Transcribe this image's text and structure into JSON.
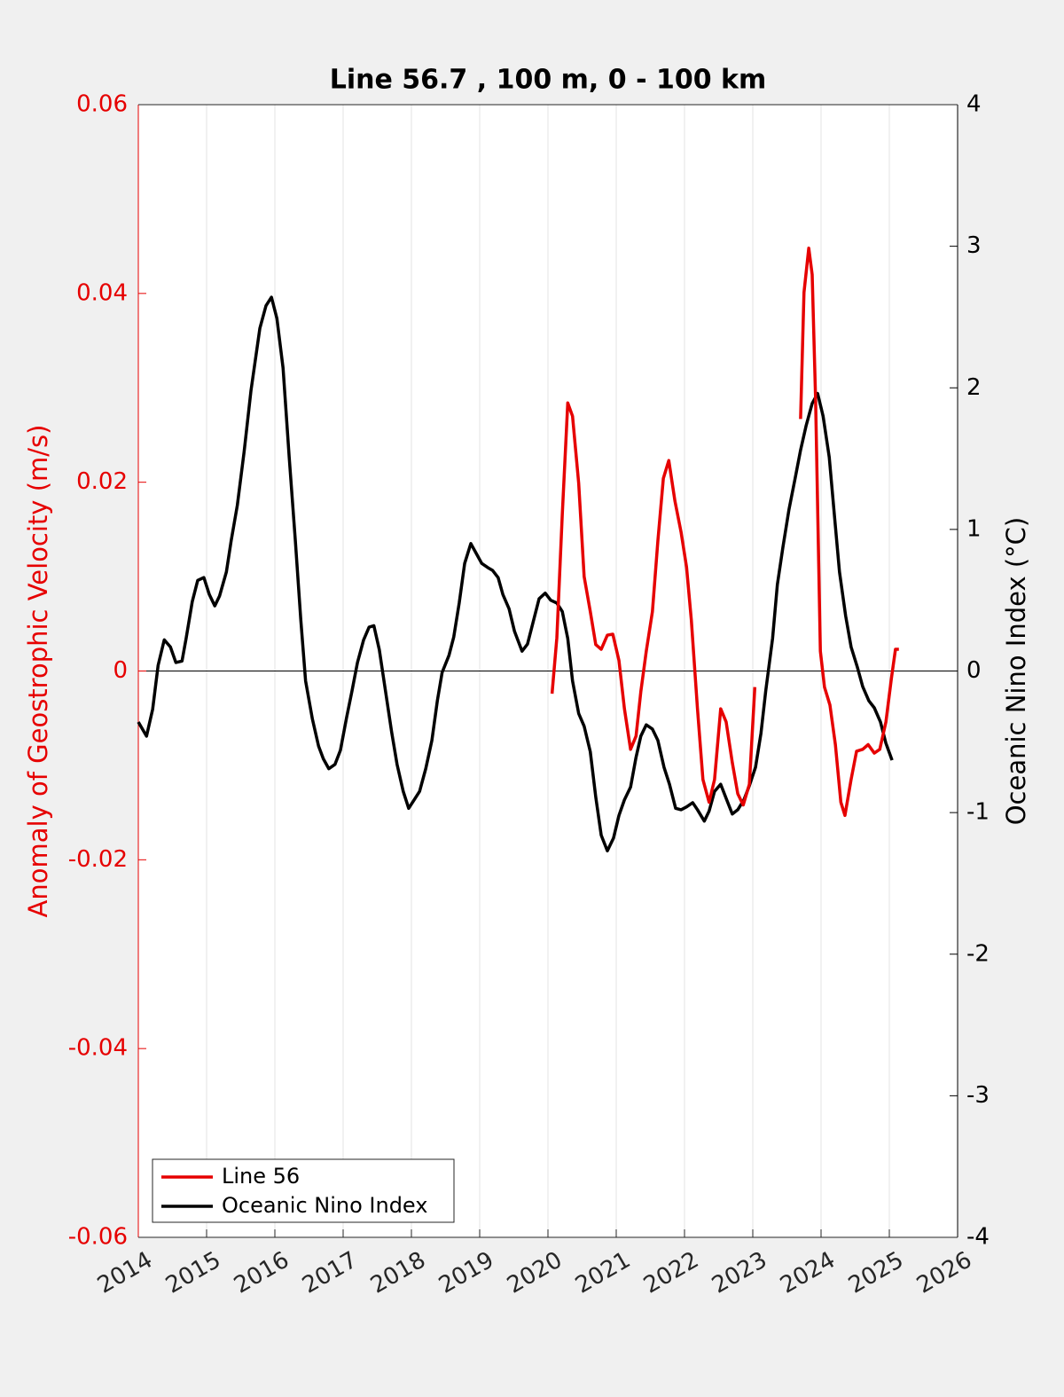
{
  "chart_data": {
    "type": "line",
    "title": "Line 56.7 , 100 m, 0 - 100 km",
    "ylabel": "Anomaly of Geostrophic Velocity (m/s)",
    "y2label": "Oceanic Nino Index (°C)",
    "ycolor": "#e60000",
    "y2color": "#000000",
    "xlim": [
      2014,
      2026
    ],
    "xticks": [
      2014,
      2015,
      2016,
      2017,
      2018,
      2019,
      2020,
      2021,
      2022,
      2023,
      2024,
      2025,
      2026
    ],
    "ylim": [
      -0.06,
      0.06
    ],
    "yticks": [
      -0.06,
      -0.04,
      -0.02,
      0,
      0.02,
      0.04,
      0.06
    ],
    "y2lim": [
      -4,
      4
    ],
    "y2ticks": [
      -4,
      -3,
      -2,
      -1,
      0,
      1,
      2,
      3,
      4
    ],
    "xgrid": true,
    "reference_line": 0,
    "legend": "lower left",
    "series": [
      {
        "name": "Line 56",
        "color": "#e60000",
        "axis": "y",
        "x": [
          2020.06,
          2020.13,
          2020.21,
          2020.29,
          2020.36,
          2020.45,
          2020.53,
          2020.62,
          2020.7,
          2020.78,
          2020.87,
          2020.95,
          2021.04,
          2021.12,
          2021.21,
          2021.29,
          2021.36,
          2021.44,
          2021.53,
          2021.61,
          2021.69,
          2021.77,
          2021.86,
          2021.95,
          2022.03,
          2022.1,
          2022.19,
          2022.27,
          2022.36,
          2022.44,
          2022.53,
          2022.61,
          2022.7,
          2022.78,
          2022.86,
          2022.95,
          2023.03,
          2023.4,
          2023.7,
          2023.75,
          2023.82,
          2023.87,
          2023.92,
          2023.99,
          2024.05,
          2024.13,
          2024.21,
          2024.29,
          2024.35,
          2024.44,
          2024.52,
          2024.61,
          2024.69,
          2024.78,
          2024.86,
          2024.95,
          2025.03,
          2025.09,
          2025.14
        ],
        "values": [
          -0.0024,
          0.0035,
          0.0166,
          0.0284,
          0.027,
          0.0199,
          0.01,
          0.0063,
          0.0028,
          0.0023,
          0.0038,
          0.0039,
          0.0011,
          -0.004,
          -0.0083,
          -0.0069,
          -0.0022,
          0.0021,
          0.0063,
          0.0138,
          0.0204,
          0.0223,
          0.018,
          0.0147,
          0.011,
          0.0054,
          -0.004,
          -0.0115,
          -0.0139,
          -0.0115,
          -0.004,
          -0.0054,
          -0.0097,
          -0.013,
          -0.0142,
          -0.012,
          -0.0017,
          null,
          0.0267,
          0.0401,
          0.0448,
          0.042,
          0.0288,
          0.0021,
          -0.0017,
          -0.0036,
          -0.0078,
          -0.0139,
          -0.0153,
          -0.0115,
          -0.0085,
          -0.0083,
          -0.0078,
          -0.0087,
          -0.0083,
          -0.0054,
          -0.0008,
          0.0023,
          0.0023
        ]
      },
      {
        "name": "Oceanic Nino Index",
        "color": "#000000",
        "axis": "y2",
        "x": [
          2014.0,
          2014.12,
          2014.21,
          2014.29,
          2014.38,
          2014.47,
          2014.55,
          2014.64,
          2014.7,
          2014.79,
          2014.87,
          2014.96,
          2015.04,
          2015.12,
          2015.19,
          2015.29,
          2015.36,
          2015.45,
          2015.55,
          2015.65,
          2015.78,
          2015.87,
          2015.95,
          2016.03,
          2016.12,
          2016.21,
          2016.3,
          2016.38,
          2016.45,
          2016.55,
          2016.64,
          2016.71,
          2016.79,
          2016.88,
          2016.96,
          2017.05,
          2017.13,
          2017.21,
          2017.3,
          2017.38,
          2017.45,
          2017.53,
          2017.62,
          2017.71,
          2017.79,
          2017.88,
          2017.96,
          2018.04,
          2018.12,
          2018.21,
          2018.3,
          2018.38,
          2018.45,
          2018.55,
          2018.62,
          2018.7,
          2018.78,
          2018.87,
          2018.95,
          2019.03,
          2019.12,
          2019.19,
          2019.27,
          2019.34,
          2019.43,
          2019.51,
          2019.62,
          2019.7,
          2019.78,
          2019.87,
          2019.96,
          2020.04,
          2020.13,
          2020.21,
          2020.29,
          2020.36,
          2020.45,
          2020.53,
          2020.62,
          2020.7,
          2020.78,
          2020.87,
          2020.96,
          2021.04,
          2021.12,
          2021.21,
          2021.29,
          2021.36,
          2021.44,
          2021.53,
          2021.61,
          2021.7,
          2021.78,
          2021.87,
          2021.95,
          2022.03,
          2022.12,
          2022.19,
          2022.29,
          2022.36,
          2022.44,
          2022.53,
          2022.61,
          2022.7,
          2022.78,
          2022.87,
          2022.95,
          2023.04,
          2023.12,
          2023.19,
          2023.29,
          2023.36,
          2023.44,
          2023.53,
          2023.62,
          2023.7,
          2023.78,
          2023.87,
          2023.95,
          2024.03,
          2024.12,
          2024.19,
          2024.27,
          2024.36,
          2024.44,
          2024.53,
          2024.61,
          2024.7,
          2024.78,
          2024.87,
          2024.95,
          2025.04
        ],
        "values": [
          -0.36,
          -0.46,
          -0.27,
          0.04,
          0.22,
          0.17,
          0.06,
          0.07,
          0.23,
          0.49,
          0.64,
          0.66,
          0.54,
          0.46,
          0.53,
          0.7,
          0.92,
          1.17,
          1.55,
          1.98,
          2.42,
          2.58,
          2.64,
          2.49,
          2.14,
          1.51,
          0.92,
          0.36,
          -0.07,
          -0.34,
          -0.53,
          -0.62,
          -0.69,
          -0.66,
          -0.56,
          -0.33,
          -0.14,
          0.06,
          0.22,
          0.31,
          0.32,
          0.15,
          -0.14,
          -0.43,
          -0.66,
          -0.85,
          -0.97,
          -0.91,
          -0.85,
          -0.69,
          -0.49,
          -0.21,
          -0.01,
          0.11,
          0.24,
          0.48,
          0.76,
          0.9,
          0.83,
          0.76,
          0.73,
          0.71,
          0.66,
          0.54,
          0.44,
          0.28,
          0.14,
          0.19,
          0.34,
          0.51,
          0.55,
          0.5,
          0.48,
          0.42,
          0.23,
          -0.07,
          -0.3,
          -0.39,
          -0.57,
          -0.89,
          -1.16,
          -1.27,
          -1.18,
          -1.02,
          -0.91,
          -0.82,
          -0.61,
          -0.46,
          -0.38,
          -0.41,
          -0.49,
          -0.68,
          -0.8,
          -0.97,
          -0.98,
          -0.96,
          -0.93,
          -0.98,
          -1.06,
          -0.99,
          -0.85,
          -0.8,
          -0.9,
          -1.01,
          -0.98,
          -0.91,
          -0.81,
          -0.68,
          -0.44,
          -0.14,
          0.23,
          0.61,
          0.87,
          1.14,
          1.36,
          1.56,
          1.73,
          1.89,
          1.96,
          1.8,
          1.51,
          1.13,
          0.7,
          0.39,
          0.17,
          0.03,
          -0.11,
          -0.21,
          -0.26,
          -0.36,
          -0.51,
          -0.63
        ]
      }
    ]
  }
}
